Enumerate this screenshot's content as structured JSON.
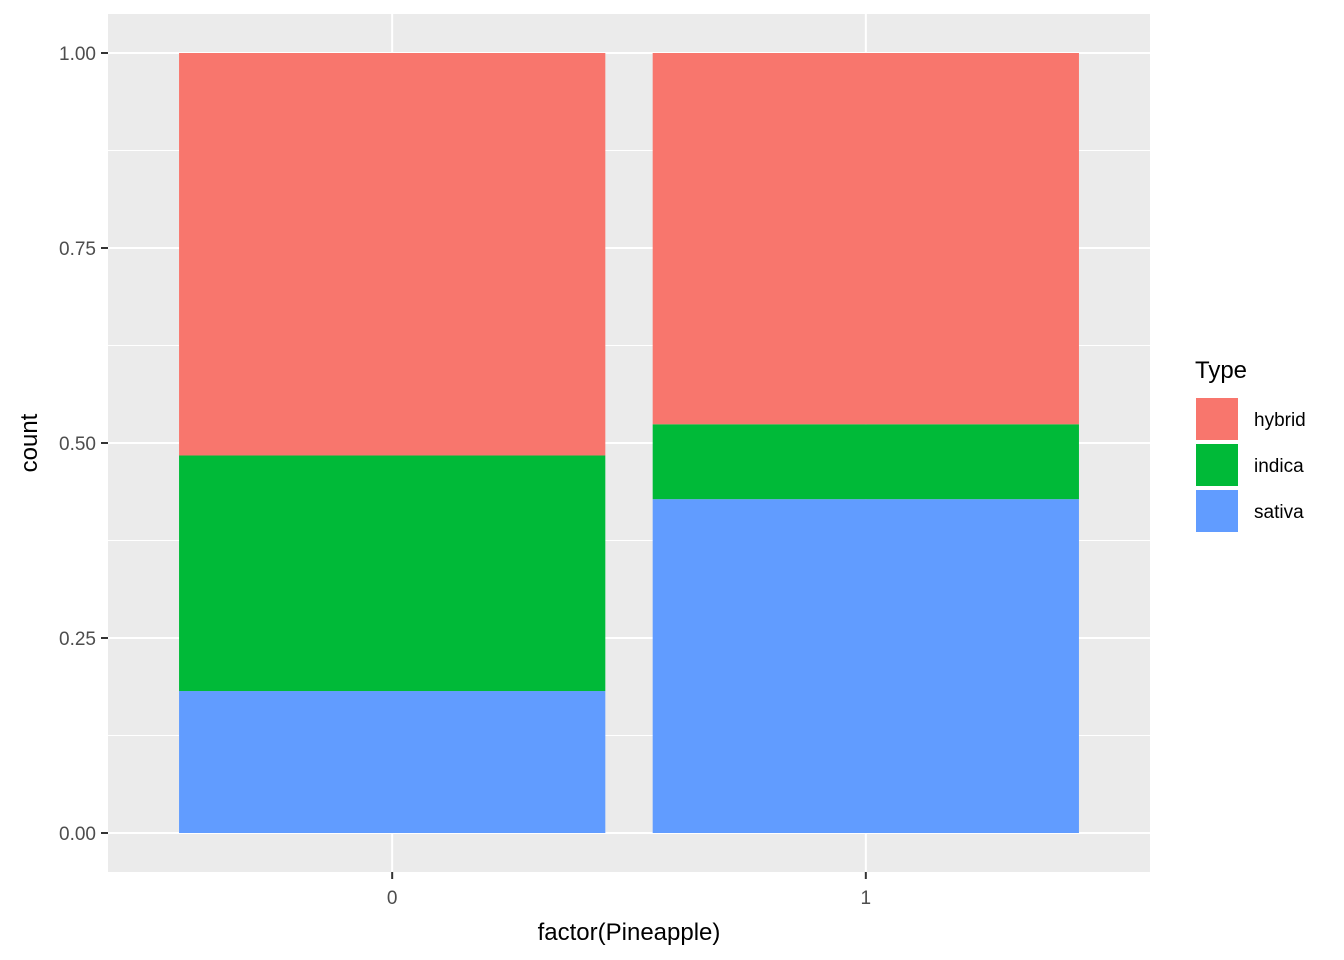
{
  "chart_data": {
    "type": "bar",
    "stacked": true,
    "categories": [
      "0",
      "1"
    ],
    "series": [
      {
        "name": "hybrid",
        "color": "#F8766D",
        "values": [
          0.516,
          0.476
        ]
      },
      {
        "name": "indica",
        "color": "#00BA38",
        "values": [
          0.302,
          0.096
        ]
      },
      {
        "name": "sativa",
        "color": "#619CFF",
        "values": [
          0.182,
          0.428
        ]
      }
    ],
    "xlabel": "factor(Pineapple)",
    "ylabel": "count",
    "ylim": [
      -0.05,
      1.05
    ],
    "yticks": [
      0,
      0.25,
      0.5,
      0.75,
      1
    ],
    "ytick_labels": [
      "0.00",
      "0.25",
      "0.50",
      "0.75",
      "1.00"
    ],
    "grid": true,
    "legend": {
      "title": "Type",
      "placement": "right"
    }
  }
}
